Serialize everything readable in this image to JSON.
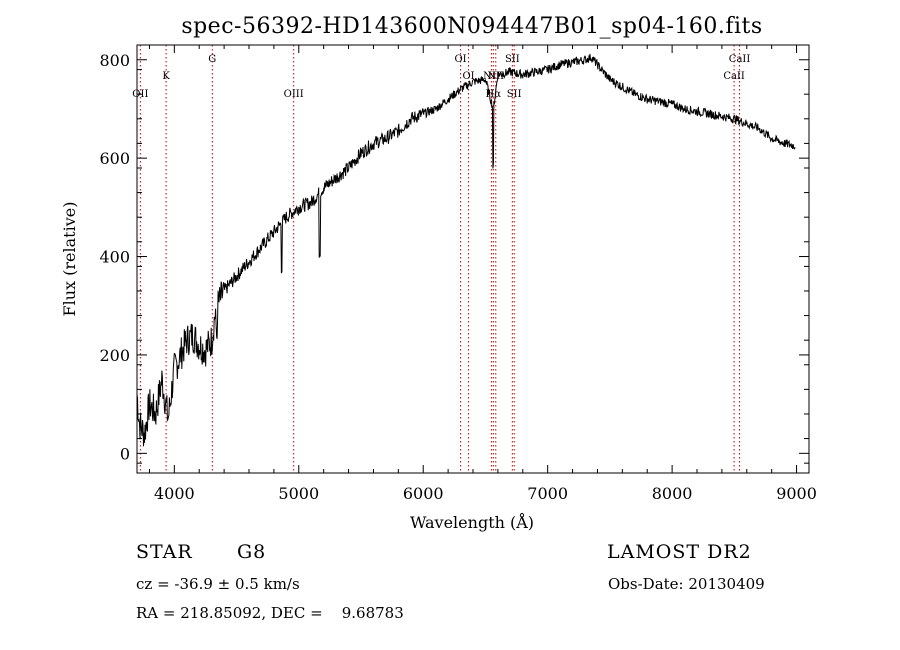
{
  "chart_data": {
    "type": "line",
    "title": "spec-56392-HD143600N094447B01_sp04-160.fits",
    "xlabel": "Wavelength (Å)",
    "ylabel": "Flux (relative)",
    "xlim": [
      3700,
      9100
    ],
    "ylim": [
      -40,
      830
    ],
    "xticks": [
      4000,
      5000,
      6000,
      7000,
      8000,
      9000
    ],
    "yticks": [
      0,
      200,
      400,
      600,
      800
    ],
    "grid": false,
    "series": [
      {
        "x": [
          3700,
          3720,
          3760,
          3800,
          3850,
          3900,
          3950,
          4000,
          4050,
          4100,
          4150,
          4200,
          4250,
          4300,
          4330,
          4400,
          4500,
          4600,
          4700,
          4800,
          4900,
          5000,
          5100,
          5200,
          5300,
          5400,
          5500,
          5600,
          5700,
          5800,
          5900,
          6000,
          6100,
          6200,
          6300,
          6400,
          6500,
          6563,
          6600,
          6700,
          6800,
          6900,
          7000,
          7100,
          7200,
          7300,
          7350,
          7400,
          7500,
          7600,
          7700,
          7800,
          7900,
          8000,
          8100,
          8200,
          8300,
          8400,
          8500,
          8600,
          8700,
          8800,
          8900,
          8990
        ],
        "y": [
          120,
          60,
          40,
          100,
          80,
          150,
          70,
          170,
          200,
          230,
          240,
          220,
          210,
          230,
          290,
          330,
          360,
          390,
          420,
          450,
          480,
          500,
          510,
          540,
          560,
          580,
          610,
          630,
          640,
          655,
          680,
          690,
          700,
          720,
          740,
          755,
          760,
          700,
          770,
          775,
          770,
          775,
          780,
          790,
          795,
          800,
          805,
          790,
          760,
          745,
          730,
          720,
          715,
          710,
          700,
          695,
          690,
          685,
          680,
          670,
          660,
          640,
          630,
          625
        ],
        "color": "#000000"
      }
    ],
    "spectral_lines": [
      {
        "label": "OII",
        "wavelength": 3727,
        "label_row": "low"
      },
      {
        "label": "K",
        "wavelength": 3934,
        "label_row": "mid"
      },
      {
        "label": "G",
        "wavelength": 4305,
        "label_row": "high"
      },
      {
        "label": "OIII",
        "wavelength": 4959,
        "label_row": "low"
      },
      {
        "label": "OI",
        "wavelength": 6300,
        "label_row": "high"
      },
      {
        "label": "OI",
        "wavelength": 6364,
        "label_row": "mid"
      },
      {
        "label": "NII",
        "wavelength": 6548,
        "label_row": "mid"
      },
      {
        "label": "Hα",
        "wavelength": 6563,
        "label_row": "low"
      },
      {
        "label": "NII",
        "wavelength": 6583,
        "label_row": "mid"
      },
      {
        "label": "SII",
        "wavelength": 6716,
        "label_row": "high"
      },
      {
        "label": "SII",
        "wavelength": 6731,
        "label_row": "low"
      },
      {
        "label": "CaII",
        "wavelength": 8498,
        "label_row": "mid"
      },
      {
        "label": "CaII",
        "wavelength": 8542,
        "label_row": "high"
      }
    ],
    "line_marker_color": "#cc0000"
  },
  "info": {
    "object_class": "STAR",
    "subclass": "G8",
    "survey": "LAMOST DR2",
    "velocity": "cz = -36.9 ± 0.5 km/s",
    "obs_date": "Obs-Date: 20130409",
    "coords": "RA = 218.85092, DEC =    9.68783"
  }
}
